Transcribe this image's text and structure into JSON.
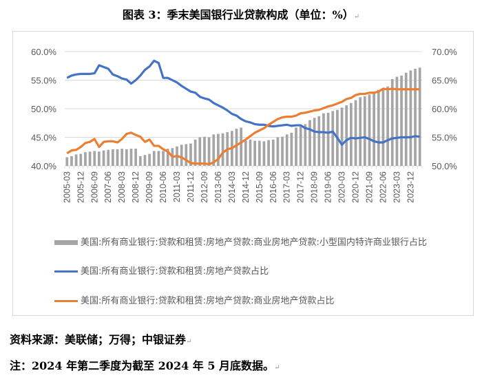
{
  "title": "图表 3：季末美国银行业贷款构成（单位：%）",
  "chart_data": {
    "type": "bar+line",
    "title": "图表 3：季末美国银行业贷款构成（单位：%）",
    "x_start": "2005-03",
    "x_end": "2024-06",
    "frequency": "quarterly",
    "tick_labels": [
      "2005-03",
      "2005-12",
      "2006-09",
      "2007-06",
      "2008-03",
      "2008-12",
      "2009-09",
      "2010-06",
      "2011-03",
      "2011-12",
      "2012-09",
      "2013-06",
      "2014-03",
      "2014-12",
      "2015-09",
      "2016-06",
      "2017-03",
      "2017-12",
      "2018-09",
      "2019-06",
      "2020-03",
      "2020-12",
      "2021-09",
      "2022-06",
      "2023-03",
      "2023-12"
    ],
    "left_axis": {
      "ylim": [
        40,
        60
      ],
      "ticks": [
        "40.0%",
        "45.0%",
        "50.0%",
        "55.0%",
        "60.0%"
      ]
    },
    "right_axis": {
      "ylim": [
        50,
        70
      ],
      "ticks": [
        "50.0%",
        "55.0%",
        "60.0%",
        "65.0%",
        "70.0%"
      ]
    },
    "grid": true,
    "legend_placement": "bottom",
    "series": [
      {
        "name": "美国:所有商业银行:贷款和租赁:房地产贷款:商业房地产贷款:小型国内特许商业银行占比",
        "type": "bar",
        "axis": "right",
        "color": "#a5a5a5",
        "values": [
          51.5,
          51.7,
          52.0,
          52.1,
          52.4,
          52.5,
          52.6,
          52.5,
          52.7,
          52.8,
          52.9,
          52.9,
          53.0,
          52.9,
          53.0,
          53.0,
          51.7,
          51.9,
          52.1,
          52.6,
          52.6,
          52.6,
          53.0,
          53.1,
          53.4,
          53.7,
          53.8,
          53.9,
          54.6,
          55.0,
          55.1,
          55.0,
          55.5,
          55.6,
          55.7,
          55.9,
          56.1,
          56.5,
          56.7,
          54.4,
          54.6,
          54.4,
          54.4,
          54.3,
          54.5,
          54.6,
          55.0,
          55.1,
          55.5,
          55.8,
          56.7,
          56.9,
          57.3,
          58.0,
          58.4,
          58.7,
          59.2,
          59.3,
          59.6,
          59.8,
          60.2,
          60.6,
          61.0,
          61.5,
          62.0,
          62.2,
          62.5,
          62.8,
          63.3,
          63.6,
          63.9,
          65.2,
          65.6,
          65.8,
          66.3,
          66.7,
          67.0,
          67.2
        ]
      },
      {
        "name": "美国:所有商业银行:贷款和租赁:房地产贷款占比",
        "type": "line",
        "axis": "left",
        "color": "#4472c4",
        "values": [
          55.4,
          55.8,
          56.0,
          56.1,
          56.1,
          56.1,
          56.2,
          57.6,
          57.3,
          57.0,
          56.0,
          55.7,
          55.3,
          55.1,
          54.4,
          55.0,
          55.8,
          56.8,
          57.4,
          58.4,
          58.0,
          55.4,
          55.4,
          55.0,
          54.6,
          54.0,
          53.5,
          53.0,
          52.8,
          52.1,
          51.8,
          51.6,
          51.0,
          50.6,
          50.2,
          49.7,
          49.1,
          48.8,
          48.2,
          47.8,
          47.6,
          47.3,
          47.2,
          47.2,
          47.0,
          46.9,
          47.0,
          47.1,
          47.2,
          47.0,
          47.1,
          47.1,
          46.6,
          46.4,
          46.0,
          45.9,
          45.9,
          45.8,
          46.0,
          44.9,
          43.7,
          44.5,
          44.9,
          44.8,
          44.9,
          45.0,
          44.7,
          44.3,
          44.1,
          44.1,
          44.5,
          44.8,
          44.9,
          45.0,
          45.0,
          45.0,
          45.2,
          45.1
        ]
      },
      {
        "name": "美国:所有商业银行:贷款和租赁:房地产贷款:商业房地产贷款占比",
        "type": "line",
        "axis": "right",
        "color": "#ed7d31",
        "values": [
          52.2,
          52.7,
          52.8,
          53.3,
          54.0,
          54.2,
          54.7,
          53.3,
          54.2,
          54.3,
          54.3,
          54.1,
          54.7,
          55.6,
          55.8,
          55.4,
          55.1,
          54.2,
          54.6,
          53.5,
          53.5,
          52.9,
          52.5,
          51.6,
          51.7,
          51.5,
          51.0,
          50.5,
          50.4,
          50.4,
          50.4,
          50.3,
          50.6,
          51.2,
          52.3,
          52.9,
          53.1,
          53.6,
          54.1,
          54.6,
          55.2,
          55.8,
          56.2,
          56.6,
          57.2,
          57.7,
          58.2,
          58.5,
          58.6,
          58.6,
          58.8,
          59.2,
          59.3,
          59.5,
          59.7,
          59.8,
          60.1,
          60.4,
          60.6,
          60.9,
          61.2,
          61.7,
          61.9,
          62.4,
          62.6,
          62.6,
          62.8,
          62.8,
          63.0,
          63.5,
          63.4,
          63.5,
          63.4,
          63.4,
          63.4,
          63.4,
          63.4,
          63.4
        ]
      }
    ]
  },
  "source": "资料来源：美联储；万得；中银证券",
  "note": "注：2024 年第二季度为截至 2024 年 5 月底数据。",
  "return_mark": "↵"
}
